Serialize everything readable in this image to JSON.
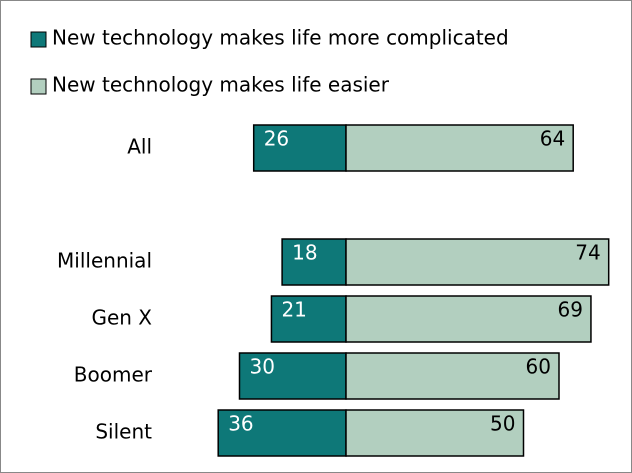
{
  "chart_data": {
    "type": "diverging-bar",
    "categories": [
      "All",
      null,
      "Millennial",
      "Gen X",
      "Boomer",
      "Silent"
    ],
    "series": [
      {
        "name": "New technology makes life more complicated",
        "color": "#0e7878",
        "values": [
          26,
          null,
          18,
          21,
          30,
          36
        ]
      },
      {
        "name": "New technology makes life easier",
        "color": "#b2cfbf",
        "values": [
          64,
          null,
          74,
          69,
          60,
          50
        ]
      }
    ]
  }
}
